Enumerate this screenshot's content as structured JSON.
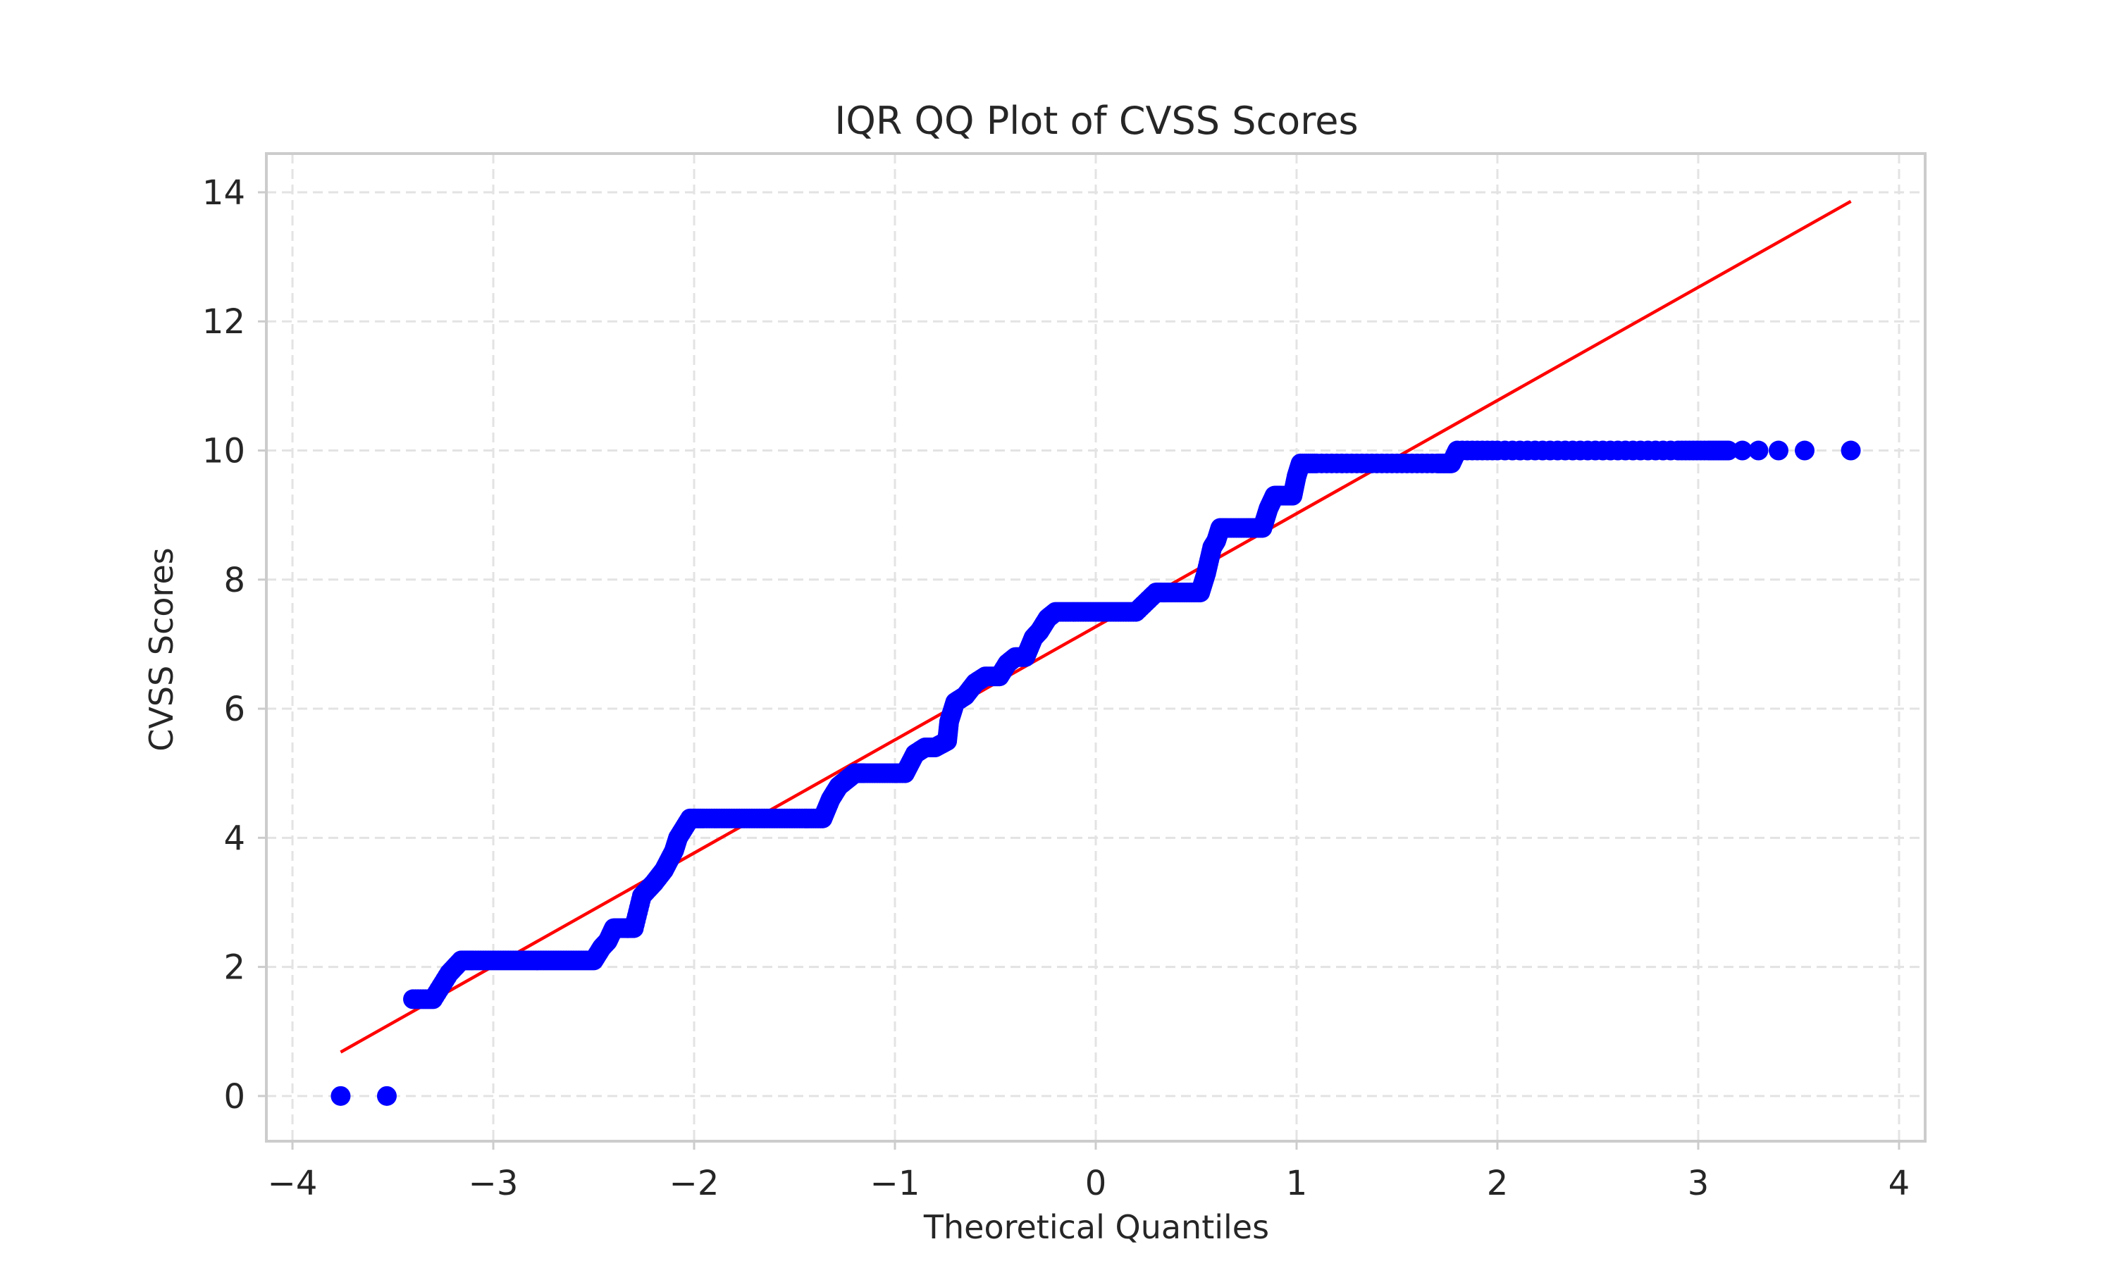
{
  "chart_data": {
    "type": "scatter",
    "title": "IQR QQ Plot of CVSS Scores",
    "xlabel": "Theoretical Quantiles",
    "ylabel": "CVSS Scores",
    "xlim": [
      -4.13,
      4.13
    ],
    "ylim": [
      -0.7,
      14.6
    ],
    "xticks": [
      -4,
      -3,
      -2,
      -1,
      0,
      1,
      2,
      3,
      4
    ],
    "xtick_labels": [
      "−4",
      "−3",
      "−2",
      "−1",
      "0",
      "1",
      "2",
      "3",
      "4"
    ],
    "yticks": [
      0,
      2,
      4,
      6,
      8,
      10,
      12,
      14
    ],
    "ytick_labels": [
      "0",
      "2",
      "4",
      "6",
      "8",
      "10",
      "12",
      "14"
    ],
    "grid": true,
    "colors": {
      "points": "#0000ff",
      "fit_line": "#ff0000",
      "grid": "#e3e3e3",
      "frame": "#cccccc"
    },
    "series": [
      {
        "kind": "points",
        "x": [
          -3.76,
          -3.53,
          -3.4,
          -3.3,
          -3.22,
          -3.16,
          -3.1,
          -3.0,
          -2.9,
          -2.8,
          -2.7,
          -2.6,
          -2.5,
          -2.46,
          -2.43,
          -2.4,
          -2.35,
          -2.3,
          -2.26,
          -2.2,
          -2.15,
          -2.1,
          -2.08,
          -2.02,
          -1.95,
          -1.85,
          -1.75,
          -1.65,
          -1.55,
          -1.45,
          -1.36,
          -1.32,
          -1.28,
          -1.24,
          -1.2,
          -1.15,
          -1.05,
          -0.95,
          -0.9,
          -0.85,
          -0.8,
          -0.74,
          -0.73,
          -0.7,
          -0.65,
          -0.6,
          -0.55,
          -0.48,
          -0.44,
          -0.4,
          -0.35,
          -0.31,
          -0.28,
          -0.24,
          -0.2,
          -0.1,
          0.0,
          0.1,
          0.2,
          0.3,
          0.32,
          0.38,
          0.45,
          0.52,
          0.55,
          0.58,
          0.6,
          0.62,
          0.65,
          0.75,
          0.83,
          0.86,
          0.89,
          0.92,
          0.98,
          1.0,
          1.02,
          1.1,
          1.3,
          1.5,
          1.7,
          1.77,
          1.8,
          2.0,
          2.3,
          2.6,
          2.9,
          3.05,
          3.15,
          3.22,
          3.3,
          3.4,
          3.53,
          3.76
        ],
        "y": [
          0.0,
          0.0,
          1.5,
          1.5,
          1.9,
          2.1,
          2.1,
          2.1,
          2.1,
          2.1,
          2.1,
          2.1,
          2.1,
          2.3,
          2.4,
          2.6,
          2.6,
          2.6,
          3.1,
          3.3,
          3.5,
          3.8,
          4.0,
          4.3,
          4.3,
          4.3,
          4.3,
          4.3,
          4.3,
          4.3,
          4.3,
          4.6,
          4.8,
          4.9,
          5.0,
          5.0,
          5.0,
          5.0,
          5.3,
          5.4,
          5.4,
          5.5,
          5.8,
          6.1,
          6.2,
          6.4,
          6.5,
          6.5,
          6.7,
          6.8,
          6.8,
          7.1,
          7.2,
          7.4,
          7.5,
          7.5,
          7.5,
          7.5,
          7.5,
          7.8,
          7.8,
          7.8,
          7.8,
          7.8,
          8.1,
          8.5,
          8.6,
          8.8,
          8.8,
          8.8,
          8.8,
          9.1,
          9.3,
          9.3,
          9.3,
          9.6,
          9.8,
          9.8,
          9.8,
          9.8,
          9.8,
          9.8,
          10.0,
          10.0,
          10.0,
          10.0,
          10.0,
          10.0,
          10.0,
          10.0,
          10.0,
          10.0,
          10.0,
          10.0
        ]
      },
      {
        "kind": "line",
        "x": [
          -3.76,
          3.76
        ],
        "y": [
          0.68,
          13.86
        ]
      }
    ]
  }
}
